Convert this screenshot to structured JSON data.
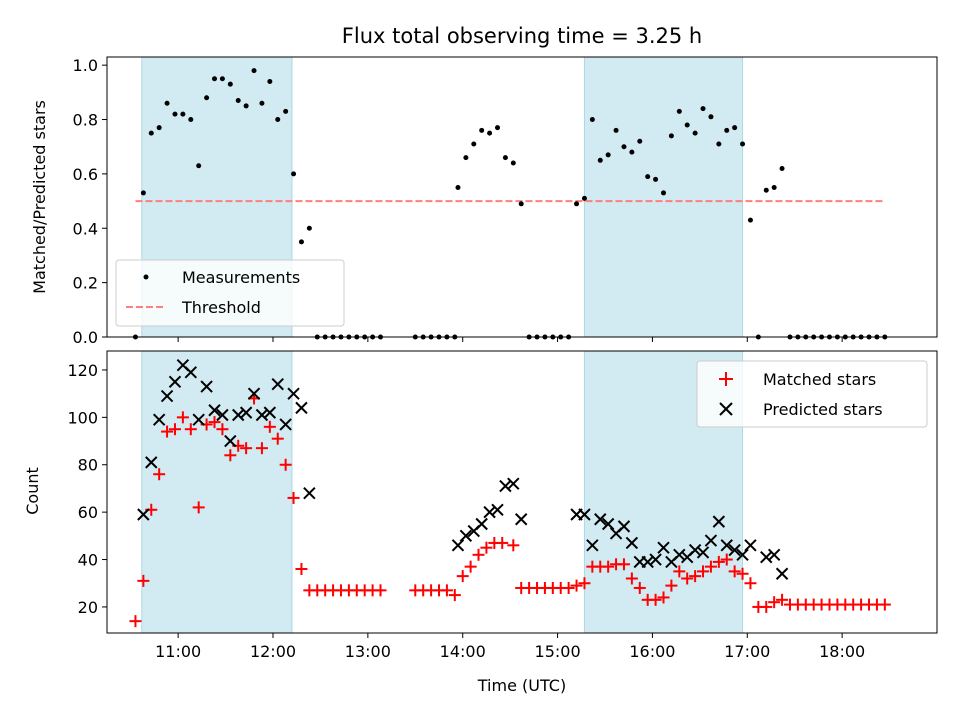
{
  "chart_data": [
    {
      "type": "scatter",
      "title": "Flux total observing time = 3.25 h",
      "xlabel": "",
      "ylabel": "Matched/Predicted stars",
      "ylim": [
        0,
        1.03
      ],
      "yticks": [
        0.0,
        0.2,
        0.4,
        0.6,
        0.8,
        1.0
      ],
      "ytick_labels": [
        "0.0",
        "0.2",
        "0.4",
        "0.6",
        "0.8",
        "1.0"
      ],
      "legend_position": "lower-left",
      "shaded_intervals": [
        [
          "10:37",
          "12:12"
        ],
        [
          "15:17",
          "16:57"
        ]
      ],
      "shade_color": "#add8e6",
      "series": [
        {
          "name": "Measurements",
          "marker": "dot",
          "color": "#000000",
          "points": [
            [
              "10:33",
              0.0
            ],
            [
              "10:38",
              0.53
            ],
            [
              "10:43",
              0.75
            ],
            [
              "10:48",
              0.77
            ],
            [
              "10:53",
              0.86
            ],
            [
              "10:58",
              0.82
            ],
            [
              "11:03",
              0.82
            ],
            [
              "11:08",
              0.8
            ],
            [
              "11:13",
              0.63
            ],
            [
              "11:18",
              0.88
            ],
            [
              "11:23",
              0.95
            ],
            [
              "11:28",
              0.95
            ],
            [
              "11:33",
              0.93
            ],
            [
              "11:38",
              0.87
            ],
            [
              "11:43",
              0.85
            ],
            [
              "11:48",
              0.98
            ],
            [
              "11:53",
              0.86
            ],
            [
              "11:58",
              0.94
            ],
            [
              "12:03",
              0.8
            ],
            [
              "12:08",
              0.83
            ],
            [
              "12:13",
              0.6
            ],
            [
              "12:18",
              0.35
            ],
            [
              "12:23",
              0.4
            ],
            [
              "12:28",
              0.0
            ],
            [
              "12:33",
              0.0
            ],
            [
              "12:38",
              0.0
            ],
            [
              "12:43",
              0.0
            ],
            [
              "12:48",
              0.0
            ],
            [
              "12:53",
              0.0
            ],
            [
              "12:58",
              0.0
            ],
            [
              "13:03",
              0.0
            ],
            [
              "13:08",
              0.0
            ],
            [
              "13:30",
              0.0
            ],
            [
              "13:35",
              0.0
            ],
            [
              "13:40",
              0.0
            ],
            [
              "13:45",
              0.0
            ],
            [
              "13:50",
              0.0
            ],
            [
              "13:55",
              0.0
            ],
            [
              "13:57",
              0.55
            ],
            [
              "14:02",
              0.66
            ],
            [
              "14:07",
              0.71
            ],
            [
              "14:12",
              0.76
            ],
            [
              "14:17",
              0.75
            ],
            [
              "14:22",
              0.77
            ],
            [
              "14:27",
              0.66
            ],
            [
              "14:32",
              0.64
            ],
            [
              "14:37",
              0.49
            ],
            [
              "14:42",
              0.0
            ],
            [
              "14:47",
              0.0
            ],
            [
              "14:52",
              0.0
            ],
            [
              "14:57",
              0.0
            ],
            [
              "15:02",
              0.0
            ],
            [
              "15:07",
              0.0
            ],
            [
              "15:12",
              0.49
            ],
            [
              "15:17",
              0.51
            ],
            [
              "15:22",
              0.8
            ],
            [
              "15:27",
              0.65
            ],
            [
              "15:32",
              0.67
            ],
            [
              "15:37",
              0.76
            ],
            [
              "15:42",
              0.7
            ],
            [
              "15:47",
              0.68
            ],
            [
              "15:52",
              0.72
            ],
            [
              "15:57",
              0.59
            ],
            [
              "16:02",
              0.58
            ],
            [
              "16:07",
              0.53
            ],
            [
              "16:12",
              0.74
            ],
            [
              "16:17",
              0.83
            ],
            [
              "16:22",
              0.78
            ],
            [
              "16:27",
              0.75
            ],
            [
              "16:32",
              0.84
            ],
            [
              "16:37",
              0.81
            ],
            [
              "16:42",
              0.71
            ],
            [
              "16:47",
              0.76
            ],
            [
              "16:52",
              0.77
            ],
            [
              "16:57",
              0.71
            ],
            [
              "17:02",
              0.43
            ],
            [
              "17:07",
              0.0
            ],
            [
              "17:12",
              0.54
            ],
            [
              "17:17",
              0.55
            ],
            [
              "17:22",
              0.62
            ],
            [
              "17:27",
              0.0
            ],
            [
              "17:32",
              0.0
            ],
            [
              "17:37",
              0.0
            ],
            [
              "17:42",
              0.0
            ],
            [
              "17:47",
              0.0
            ],
            [
              "17:52",
              0.0
            ],
            [
              "17:57",
              0.0
            ],
            [
              "18:02",
              0.0
            ],
            [
              "18:07",
              0.0
            ],
            [
              "18:12",
              0.0
            ],
            [
              "18:17",
              0.0
            ],
            [
              "18:22",
              0.0
            ],
            [
              "18:27",
              0.0
            ]
          ]
        },
        {
          "name": "Threshold",
          "marker": "dashed-line",
          "color": "#ff7f7f",
          "points": [
            [
              "10:33",
              0.5
            ],
            [
              "18:27",
              0.5
            ]
          ]
        }
      ]
    },
    {
      "type": "scatter",
      "title": "",
      "xlabel": "Time (UTC)",
      "ylabel": "Count",
      "xlim": [
        "10:15",
        "19:00"
      ],
      "xticks": [
        "11:00",
        "12:00",
        "13:00",
        "14:00",
        "15:00",
        "16:00",
        "17:00",
        "18:00"
      ],
      "ylim": [
        9,
        128
      ],
      "yticks": [
        20,
        40,
        60,
        80,
        100,
        120
      ],
      "legend_position": "upper-right",
      "shaded_intervals": [
        [
          "10:37",
          "12:12"
        ],
        [
          "15:17",
          "16:57"
        ]
      ],
      "shade_color": "#add8e6",
      "series": [
        {
          "name": "Matched stars",
          "marker": "plus",
          "color": "#ff0000",
          "points": [
            [
              "10:33",
              14
            ],
            [
              "10:38",
              31
            ],
            [
              "10:43",
              61
            ],
            [
              "10:48",
              76
            ],
            [
              "10:53",
              94
            ],
            [
              "10:58",
              95
            ],
            [
              "11:03",
              100
            ],
            [
              "11:08",
              95
            ],
            [
              "11:13",
              62
            ],
            [
              "11:18",
              97
            ],
            [
              "11:23",
              98
            ],
            [
              "11:28",
              95
            ],
            [
              "11:33",
              84
            ],
            [
              "11:38",
              88
            ],
            [
              "11:43",
              87
            ],
            [
              "11:48",
              108
            ],
            [
              "11:53",
              87
            ],
            [
              "11:58",
              96
            ],
            [
              "12:03",
              91
            ],
            [
              "12:08",
              80
            ],
            [
              "12:13",
              66
            ],
            [
              "12:18",
              36
            ],
            [
              "12:23",
              27
            ],
            [
              "12:28",
              27
            ],
            [
              "12:33",
              27
            ],
            [
              "12:38",
              27
            ],
            [
              "12:43",
              27
            ],
            [
              "12:48",
              27
            ],
            [
              "12:53",
              27
            ],
            [
              "12:58",
              27
            ],
            [
              "13:03",
              27
            ],
            [
              "13:08",
              27
            ],
            [
              "13:30",
              27
            ],
            [
              "13:35",
              27
            ],
            [
              "13:40",
              27
            ],
            [
              "13:45",
              27
            ],
            [
              "13:50",
              27
            ],
            [
              "13:55",
              25
            ],
            [
              "14:00",
              33
            ],
            [
              "14:05",
              37
            ],
            [
              "14:10",
              42
            ],
            [
              "14:15",
              45
            ],
            [
              "14:20",
              47
            ],
            [
              "14:25",
              47
            ],
            [
              "14:32",
              46
            ],
            [
              "14:37",
              28
            ],
            [
              "14:42",
              28
            ],
            [
              "14:47",
              28
            ],
            [
              "14:52",
              28
            ],
            [
              "14:57",
              28
            ],
            [
              "15:02",
              28
            ],
            [
              "15:07",
              28
            ],
            [
              "15:12",
              29
            ],
            [
              "15:17",
              30
            ],
            [
              "15:22",
              37
            ],
            [
              "15:27",
              37
            ],
            [
              "15:32",
              37
            ],
            [
              "15:37",
              38
            ],
            [
              "15:42",
              38
            ],
            [
              "15:47",
              32
            ],
            [
              "15:52",
              28
            ],
            [
              "15:57",
              23
            ],
            [
              "16:02",
              23
            ],
            [
              "16:07",
              24
            ],
            [
              "16:12",
              29
            ],
            [
              "16:17",
              35
            ],
            [
              "16:22",
              32
            ],
            [
              "16:27",
              33
            ],
            [
              "16:32",
              35
            ],
            [
              "16:37",
              37
            ],
            [
              "16:42",
              39
            ],
            [
              "16:47",
              40
            ],
            [
              "16:52",
              35
            ],
            [
              "16:57",
              34
            ],
            [
              "17:02",
              30
            ],
            [
              "17:07",
              20
            ],
            [
              "17:12",
              20
            ],
            [
              "17:17",
              22
            ],
            [
              "17:22",
              23
            ],
            [
              "17:27",
              21
            ],
            [
              "17:32",
              21
            ],
            [
              "17:37",
              21
            ],
            [
              "17:42",
              21
            ],
            [
              "17:47",
              21
            ],
            [
              "17:52",
              21
            ],
            [
              "17:57",
              21
            ],
            [
              "18:02",
              21
            ],
            [
              "18:07",
              21
            ],
            [
              "18:12",
              21
            ],
            [
              "18:17",
              21
            ],
            [
              "18:22",
              21
            ],
            [
              "18:27",
              21
            ]
          ]
        },
        {
          "name": "Predicted stars",
          "marker": "x",
          "color": "#000000",
          "points": [
            [
              "10:38",
              59
            ],
            [
              "10:43",
              81
            ],
            [
              "10:48",
              99
            ],
            [
              "10:53",
              109
            ],
            [
              "10:58",
              115
            ],
            [
              "11:03",
              122
            ],
            [
              "11:08",
              119
            ],
            [
              "11:13",
              99
            ],
            [
              "11:18",
              113
            ],
            [
              "11:23",
              103
            ],
            [
              "11:28",
              101
            ],
            [
              "11:33",
              90
            ],
            [
              "11:38",
              101
            ],
            [
              "11:43",
              102
            ],
            [
              "11:48",
              110
            ],
            [
              "11:53",
              101
            ],
            [
              "11:58",
              102
            ],
            [
              "12:03",
              114
            ],
            [
              "12:08",
              97
            ],
            [
              "12:13",
              110
            ],
            [
              "12:18",
              104
            ],
            [
              "12:23",
              68
            ],
            [
              "13:57",
              46
            ],
            [
              "14:02",
              50
            ],
            [
              "14:07",
              52
            ],
            [
              "14:12",
              55
            ],
            [
              "14:17",
              60
            ],
            [
              "14:22",
              61
            ],
            [
              "14:27",
              71
            ],
            [
              "14:32",
              72
            ],
            [
              "14:37",
              57
            ],
            [
              "15:12",
              59
            ],
            [
              "15:17",
              59
            ],
            [
              "15:22",
              46
            ],
            [
              "15:27",
              57
            ],
            [
              "15:32",
              55
            ],
            [
              "15:37",
              51
            ],
            [
              "15:42",
              54
            ],
            [
              "15:47",
              47
            ],
            [
              "15:52",
              39
            ],
            [
              "15:57",
              39
            ],
            [
              "16:02",
              40
            ],
            [
              "16:07",
              45
            ],
            [
              "16:12",
              39
            ],
            [
              "16:17",
              42
            ],
            [
              "16:22",
              41
            ],
            [
              "16:27",
              44
            ],
            [
              "16:32",
              43
            ],
            [
              "16:37",
              48
            ],
            [
              "16:42",
              56
            ],
            [
              "16:47",
              46
            ],
            [
              "16:52",
              44
            ],
            [
              "16:57",
              42
            ],
            [
              "17:02",
              46
            ],
            [
              "17:12",
              41
            ],
            [
              "17:17",
              42
            ],
            [
              "17:22",
              34
            ]
          ]
        }
      ]
    }
  ]
}
